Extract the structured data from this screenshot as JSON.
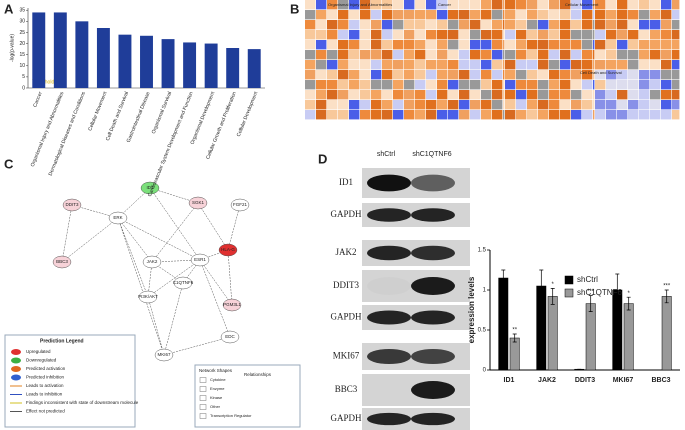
{
  "panels": {
    "a": "A",
    "b": "B",
    "c": "C",
    "d": "D"
  },
  "heatmap": {
    "groups": [
      "Organismal Injury and Abnormalities",
      "Cancer",
      "Cellular Movement",
      "Cell Death and Survival"
    ]
  },
  "network": {
    "nodes": [
      "ID1",
      "SGK1",
      "FGF21",
      "DDIT3",
      "ERK",
      "BBC3",
      "JAK2",
      "ESR1",
      "HLA-G",
      "PI3K/AKT",
      "C1QTNF6",
      "PGM3L1",
      "MKI67",
      "EDC"
    ],
    "legend": {
      "title": "Prediction Legend",
      "items": [
        "Upregulated",
        "Downregulated",
        "Predicted activation",
        "Predicted inhibition",
        "Leads to activation",
        "Leads to inhibition",
        "Findings inconsistent with state of downstream molecule",
        "Effect not predicted"
      ]
    },
    "shapes": {
      "title": "Network Shapes",
      "items": [
        "Cytokine",
        "Enzyme",
        "Kinase",
        "Other",
        "Transcription Regulator"
      ],
      "relationships": "Relationships"
    }
  },
  "blot": {
    "lanes": [
      "shCtrl",
      "shC1QTNF6"
    ],
    "rows": [
      "ID1",
      "GAPDH",
      "JAK2",
      "DDIT3",
      "GAPDH",
      "MKI67",
      "BBC3",
      "GAPDH"
    ]
  },
  "chart_data": [
    {
      "type": "bar",
      "ylabel": "-log(p-value)",
      "annotation": "Threshold",
      "color": "#1f3d99",
      "categories": [
        "Cancer",
        "Organismal Injury and Abnormalities",
        "Dermatological Diseases and Conditions",
        "Cellular Movement",
        "Cell Death and Survival",
        "Gastrointestinal Disease",
        "Organismal Survival",
        "Cardiovascular System Development and Function",
        "Organismal Development",
        "Cellular Growth and Proliferation",
        "Cellular Development"
      ],
      "values": [
        34,
        34,
        30,
        27,
        24,
        23.5,
        22,
        20.5,
        20,
        18,
        17.5
      ],
      "ylim": [
        0,
        36
      ],
      "yticks": [
        0,
        5,
        10,
        15,
        20,
        25,
        30,
        35
      ]
    },
    {
      "type": "grouped_bar",
      "ylabel": "expression levels",
      "categories": [
        "ID1",
        "JAK2",
        "DDIT3",
        "MKI67",
        "BBC3"
      ],
      "series": [
        {
          "name": "shCtrl",
          "color": "#000000",
          "values": [
            1.15,
            1.05,
            0.01,
            1.0,
            0
          ],
          "errors": [
            0.1,
            0.2,
            0,
            0.2,
            0
          ]
        },
        {
          "name": "shC1QTNF6",
          "color": "#999999",
          "values": [
            0.4,
            0.92,
            0.83,
            0.83,
            0.92
          ],
          "errors": [
            0.05,
            0.1,
            0.1,
            0.08,
            0.08
          ],
          "labels": [
            "**",
            "*",
            "***",
            "*",
            "***"
          ]
        }
      ],
      "ylim": [
        0,
        1.5
      ],
      "yticks": [
        0,
        0.5,
        1,
        1.5
      ]
    }
  ]
}
